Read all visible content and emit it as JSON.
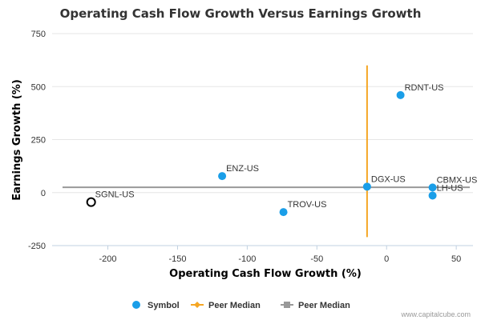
{
  "chart_data": {
    "type": "scatter",
    "title": "Operating Cash Flow Growth Versus Earnings Growth",
    "xlabel": "Operating Cash Flow Growth (%)",
    "ylabel": "Earnings Growth (%)",
    "xlim": [
      -240,
      62
    ],
    "ylim": [
      -250,
      750
    ],
    "x_ticks": [
      -200,
      -150,
      -100,
      -50,
      0,
      50
    ],
    "y_ticks": [
      750,
      500,
      250,
      0,
      -250
    ],
    "grid": "horizontal",
    "series": [
      {
        "name": "Symbol",
        "color": "#1a9ee8",
        "points": [
          {
            "label": "RDNT-US",
            "x": 10,
            "y": 460
          },
          {
            "label": "ENZ-US",
            "x": -118,
            "y": 78
          },
          {
            "label": "DGX-US",
            "x": -14,
            "y": 28
          },
          {
            "label": "CBMX-US",
            "x": 33,
            "y": 24
          },
          {
            "label": "LH-US",
            "x": 33,
            "y": -14
          },
          {
            "label": "TROV-US",
            "x": -74,
            "y": -92
          }
        ]
      }
    ],
    "highlight_point": {
      "label": "SGNL-US",
      "x": -212,
      "y": -45
    },
    "peer_median": {
      "x": -14,
      "y": 25,
      "x_color": "#f5a623",
      "y_color": "#999999"
    },
    "legend": {
      "position": "bottom",
      "items": [
        {
          "label": "Symbol",
          "marker": "circle",
          "color": "#1a9ee8"
        },
        {
          "label": "Peer Median",
          "marker": "diamond-line",
          "color": "#f5a623"
        },
        {
          "label": "Peer Median",
          "marker": "square-line",
          "color": "#999999"
        }
      ]
    }
  },
  "credit": "www.capitalcube.com"
}
